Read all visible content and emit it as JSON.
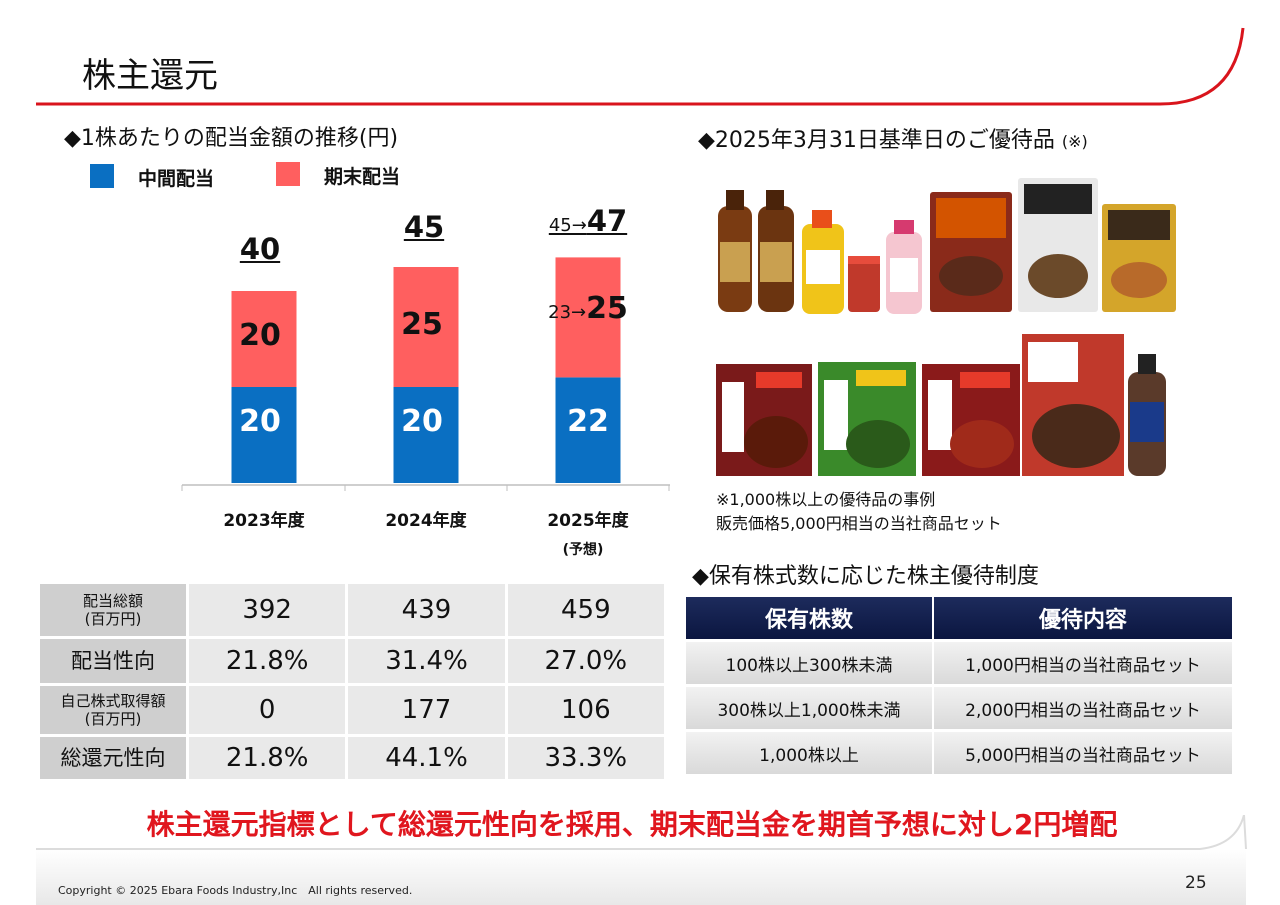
{
  "header": {
    "title": "株主還元"
  },
  "dividend_section": {
    "heading": "◆1株あたりの配当金額の推移(円)",
    "legend": [
      {
        "label": "中間配当",
        "color": "#0a6fc2"
      },
      {
        "label": "期末配当",
        "color": "#ff5f5f"
      }
    ]
  },
  "chart_data": {
    "type": "bar",
    "stacked": true,
    "title": "1株あたりの配当金額の推移(円)",
    "categories": [
      "2023年度",
      "2024年度",
      "2025年度"
    ],
    "category_note": "(予想)",
    "series": [
      {
        "name": "中間配当",
        "values": [
          20,
          20,
          22
        ],
        "color": "#0a6fc2"
      },
      {
        "name": "期末配当",
        "values": [
          20,
          25,
          25
        ],
        "color": "#ff5f5f"
      }
    ],
    "totals": [
      "40",
      "45",
      "47"
    ],
    "revisions": {
      "total_from": "45→",
      "final_from": "23→"
    },
    "ylim": [
      0,
      60
    ],
    "grid": false
  },
  "returns_table": {
    "rows": [
      {
        "label": "配当総額\n(百万円)",
        "values": [
          "392",
          "439",
          "459"
        ]
      },
      {
        "label": "配当性向",
        "values": [
          "21.8%",
          "31.4%",
          "27.0%"
        ]
      },
      {
        "label": "自己株式取得額\n(百万円)",
        "values": [
          "0",
          "177",
          "106"
        ]
      },
      {
        "label": "総還元性向",
        "values": [
          "21.8%",
          "44.1%",
          "33.3%"
        ]
      }
    ]
  },
  "gift_section": {
    "heading": "◆2025年3月31日基準日のご優待品",
    "heading_note": "(※)",
    "note_line1": "※1,000株以上の優待品の事例",
    "note_line2": "販売価格5,000円相当の当社商品セット"
  },
  "perk_section": {
    "heading": "◆保有株式数に応じた株主優待制度",
    "headers": [
      "保有株数",
      "優待内容"
    ],
    "rows": [
      [
        "100株以上300株未満",
        "1,000円相当の当社商品セット"
      ],
      [
        "300株以上1,000株未満",
        "2,000円相当の当社商品セット"
      ],
      [
        "1,000株以上",
        "5,000円相当の当社商品セット"
      ]
    ]
  },
  "footer": {
    "slogan": "株主還元指標として総還元性向を採用、期末配当金を期首予想に対し2円増配",
    "copyright": "Copyright © 2025 Ebara Foods Industry,Inc　All rights reserved.",
    "page_number": "25"
  }
}
